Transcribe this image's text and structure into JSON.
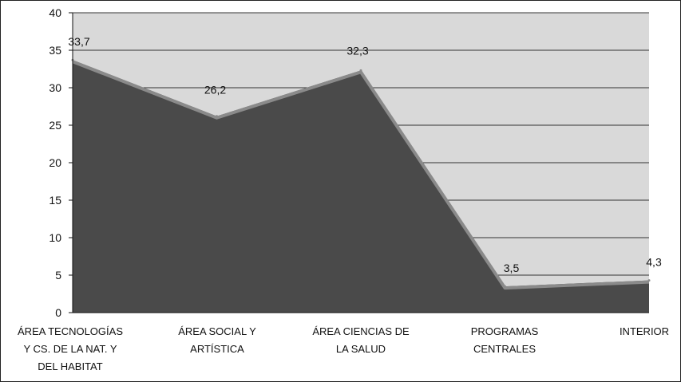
{
  "chart_data": {
    "type": "area",
    "categories": [
      [
        "ÁREA TECNOLOGÍAS",
        "Y CS. DE LA NAT. Y",
        "DEL HABITAT"
      ],
      [
        "ÁREA SOCIAL Y",
        "ARTÍSTICA"
      ],
      [
        "ÁREA CIENCIAS DE",
        "LA SALUD"
      ],
      [
        "PROGRAMAS",
        "CENTRALES"
      ],
      [
        "INTERIOR"
      ]
    ],
    "values": [
      33.7,
      26.2,
      32.3,
      3.5,
      4.3
    ],
    "data_labels": [
      "33,7",
      "26,2",
      "32,3",
      "3,5",
      "4,3"
    ],
    "ylim": [
      0,
      40
    ],
    "yticks": [
      0,
      5,
      10,
      15,
      20,
      25,
      30,
      35,
      40
    ],
    "grid": true,
    "colors": {
      "plot_bg": "#d9d9d9",
      "area_fill": "#4a4a4a",
      "area_top": "#8a8a8a",
      "grid": "#333333"
    }
  }
}
